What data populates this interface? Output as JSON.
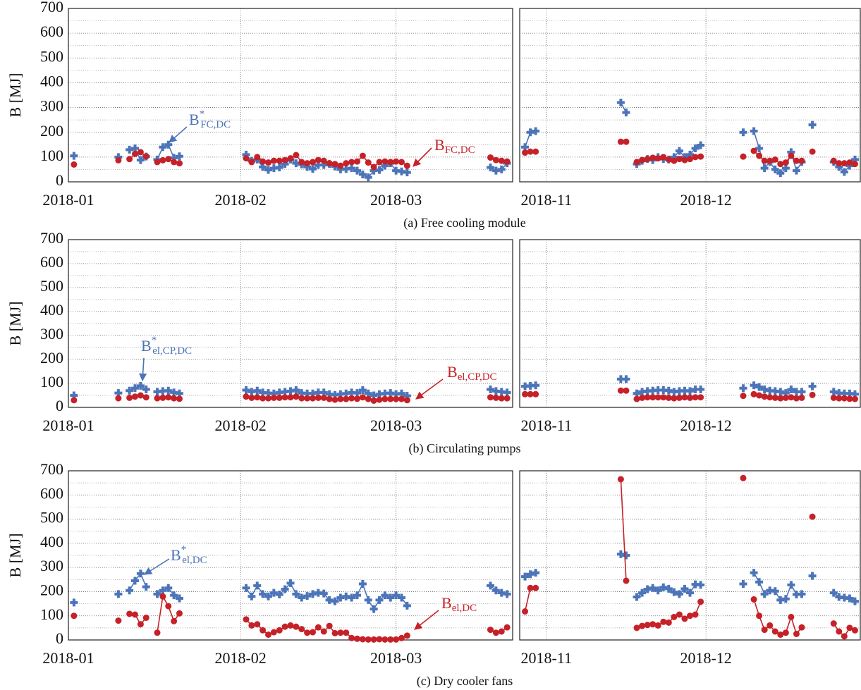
{
  "chart_data": [
    {
      "type": "line",
      "caption": "(a) Free cooling module",
      "ylabel": "B [MJ]",
      "ylim": [
        0,
        700
      ],
      "yticks": [
        0,
        100,
        200,
        300,
        400,
        500,
        600,
        700
      ],
      "yminor": [
        50,
        150,
        250,
        350,
        450,
        550,
        650
      ],
      "grid": true,
      "series": [
        {
          "name": "B",
          "sup": "*",
          "sub": "FC,DC",
          "color": "#4b74b9",
          "marker": "plus"
        },
        {
          "name": "B",
          "sub": "FC,DC",
          "color": "#c62128",
          "marker": "circle"
        }
      ],
      "panels": [
        {
          "xlim": [
            0,
            80
          ],
          "xticks": [
            {
              "value": 0,
              "label": "2018-01"
            },
            {
              "value": 31,
              "label": "2018-02"
            },
            {
              "value": 59,
              "label": "2018-03"
            }
          ],
          "x": [
            1,
            9,
            11,
            12,
            13,
            14,
            16,
            17,
            18,
            19,
            20,
            32,
            33,
            34,
            35,
            36,
            37,
            38,
            39,
            40,
            41,
            42,
            43,
            44,
            45,
            46,
            47,
            48,
            49,
            50,
            51,
            52,
            53,
            54,
            55,
            56,
            57,
            58,
            59,
            60,
            61,
            76,
            77,
            78,
            79
          ],
          "series": [
            {
              "values": [
                105,
                100,
                130,
                135,
                88,
                102,
                90,
                140,
                150,
                97,
                103,
                110,
                85,
                90,
                60,
                48,
                55,
                58,
                72,
                90,
                75,
                70,
                60,
                52,
                68,
                68,
                72,
                62,
                50,
                52,
                55,
                45,
                30,
                18,
                45,
                48,
                65,
                75,
                45,
                42,
                38,
                58,
                45,
                50,
                75
              ]
            },
            {
              "values": [
                70,
                87,
                92,
                113,
                120,
                103,
                80,
                87,
                92,
                80,
                75,
                95,
                80,
                100,
                82,
                78,
                85,
                85,
                88,
                95,
                108,
                80,
                75,
                80,
                88,
                85,
                75,
                72,
                65,
                75,
                80,
                82,
                105,
                78,
                60,
                80,
                82,
                80,
                82,
                80,
                65,
                98,
                88,
                85,
                82
              ]
            }
          ]
        },
        {
          "xlim": [
            299,
            363
          ],
          "xticks": [
            {
              "value": 304,
              "label": "2018-11"
            },
            {
              "value": 334,
              "label": "2018-12"
            }
          ],
          "x": [
            300,
            301,
            302,
            318,
            319,
            321,
            322,
            323,
            324,
            325,
            326,
            327,
            328,
            329,
            330,
            331,
            332,
            333,
            341,
            343,
            344,
            345,
            346,
            347,
            348,
            349,
            350,
            351,
            352,
            354,
            358,
            359,
            360,
            361,
            362
          ],
          "series": [
            {
              "values": [
                140,
                200,
                205,
                320,
                280,
                72,
                85,
                92,
                88,
                100,
                92,
                90,
                100,
                125,
                100,
                110,
                135,
                148,
                200,
                205,
                135,
                55,
                80,
                50,
                35,
                55,
                120,
                45,
                80,
                230,
                80,
                60,
                40,
                65,
                90
              ]
            },
            {
              "values": [
                118,
                122,
                122,
                162,
                162,
                80,
                88,
                92,
                97,
                95,
                100,
                90,
                85,
                92,
                88,
                92,
                100,
                102,
                102,
                125,
                105,
                85,
                85,
                90,
                72,
                78,
                105,
                85,
                85,
                122,
                85,
                75,
                75,
                78,
                72
              ]
            }
          ]
        }
      ]
    },
    {
      "type": "line",
      "caption": "(b) Circulating pumps",
      "ylabel": "B [MJ]",
      "ylim": [
        0,
        700
      ],
      "yticks": [
        0,
        100,
        200,
        300,
        400,
        500,
        600,
        700
      ],
      "yminor": [
        50,
        150,
        250,
        350,
        450,
        550,
        650
      ],
      "grid": true,
      "series": [
        {
          "name": "B",
          "sup": "*",
          "sub": "el,CP,DC",
          "color": "#4b74b9",
          "marker": "plus"
        },
        {
          "name": "B",
          "sub": "el,CP,DC",
          "color": "#c62128",
          "marker": "circle"
        }
      ],
      "panels": [
        {
          "xlim": [
            0,
            80
          ],
          "xticks": [
            {
              "value": 0,
              "label": "2018-01"
            },
            {
              "value": 31,
              "label": "2018-02"
            },
            {
              "value": 59,
              "label": "2018-03"
            }
          ],
          "x": [
            1,
            9,
            11,
            12,
            13,
            14,
            16,
            17,
            18,
            19,
            20,
            32,
            33,
            34,
            35,
            36,
            37,
            38,
            39,
            40,
            41,
            42,
            43,
            44,
            45,
            46,
            47,
            48,
            49,
            50,
            51,
            52,
            53,
            54,
            55,
            56,
            57,
            58,
            59,
            60,
            61,
            76,
            77,
            78,
            79
          ],
          "series": [
            {
              "values": [
                50,
                60,
                70,
                80,
                90,
                75,
                65,
                68,
                70,
                62,
                58,
                72,
                65,
                70,
                62,
                60,
                58,
                62,
                65,
                68,
                72,
                60,
                58,
                58,
                62,
                62,
                55,
                52,
                55,
                58,
                62,
                60,
                72,
                58,
                50,
                55,
                58,
                60,
                55,
                58,
                48,
                75,
                68,
                65,
                62
              ]
            },
            {
              "values": [
                30,
                38,
                40,
                45,
                50,
                42,
                38,
                40,
                42,
                38,
                36,
                45,
                40,
                42,
                38,
                38,
                40,
                40,
                42,
                42,
                45,
                38,
                38,
                38,
                40,
                40,
                35,
                32,
                35,
                35,
                38,
                36,
                42,
                35,
                28,
                32,
                35,
                35,
                35,
                35,
                30,
                42,
                40,
                38,
                38
              ]
            }
          ]
        },
        {
          "xlim": [
            299,
            363
          ],
          "xticks": [
            {
              "value": 304,
              "label": "2018-11"
            },
            {
              "value": 334,
              "label": "2018-12"
            }
          ],
          "x": [
            300,
            301,
            302,
            318,
            319,
            321,
            322,
            323,
            324,
            325,
            326,
            327,
            328,
            329,
            330,
            331,
            332,
            333,
            341,
            343,
            344,
            345,
            346,
            347,
            348,
            349,
            350,
            351,
            352,
            354,
            358,
            359,
            360,
            361,
            362
          ],
          "series": [
            {
              "values": [
                88,
                90,
                92,
                118,
                118,
                58,
                65,
                68,
                70,
                72,
                72,
                70,
                65,
                68,
                70,
                68,
                75,
                75,
                80,
                92,
                85,
                75,
                70,
                68,
                65,
                60,
                75,
                65,
                65,
                88,
                65,
                60,
                58,
                58,
                55
              ]
            },
            {
              "values": [
                55,
                55,
                55,
                70,
                70,
                35,
                40,
                42,
                42,
                42,
                42,
                40,
                38,
                40,
                42,
                40,
                42,
                42,
                48,
                55,
                50,
                45,
                42,
                40,
                38,
                40,
                42,
                38,
                40,
                52,
                40,
                38,
                38,
                36,
                35
              ]
            }
          ]
        }
      ]
    },
    {
      "type": "line",
      "caption": "(c) Dry cooler fans",
      "ylabel": "B [MJ]",
      "ylim": [
        0,
        700
      ],
      "yticks": [
        0,
        100,
        200,
        300,
        400,
        500,
        600,
        700
      ],
      "yminor": [
        50,
        150,
        250,
        350,
        450,
        550,
        650
      ],
      "grid": true,
      "series": [
        {
          "name": "B",
          "sup": "*",
          "sub": "el,DC",
          "color": "#4b74b9",
          "marker": "plus"
        },
        {
          "name": "B",
          "sub": "el,DC",
          "color": "#c62128",
          "marker": "circle"
        }
      ],
      "panels": [
        {
          "xlim": [
            0,
            80
          ],
          "xticks": [
            {
              "value": 0,
              "label": "2018-01"
            },
            {
              "value": 31,
              "label": "2018-02"
            },
            {
              "value": 59,
              "label": "2018-03"
            }
          ],
          "x": [
            1,
            9,
            11,
            12,
            13,
            14,
            16,
            17,
            18,
            19,
            20,
            32,
            33,
            34,
            35,
            36,
            37,
            38,
            39,
            40,
            41,
            42,
            43,
            44,
            45,
            46,
            47,
            48,
            49,
            50,
            51,
            52,
            53,
            54,
            55,
            56,
            57,
            58,
            59,
            60,
            61,
            76,
            77,
            78,
            79
          ],
          "series": [
            {
              "values": [
                155,
                190,
                205,
                245,
                275,
                220,
                190,
                205,
                215,
                185,
                172,
                215,
                180,
                225,
                190,
                180,
                195,
                188,
                210,
                235,
                190,
                175,
                182,
                190,
                195,
                192,
                165,
                160,
                175,
                180,
                175,
                185,
                232,
                165,
                128,
                165,
                185,
                175,
                185,
                175,
                142,
                225,
                205,
                195,
                190
              ]
            },
            {
              "values": [
                100,
                80,
                108,
                105,
                65,
                92,
                30,
                180,
                140,
                78,
                110,
                85,
                60,
                65,
                40,
                22,
                32,
                40,
                55,
                60,
                55,
                45,
                30,
                32,
                52,
                35,
                58,
                28,
                30,
                30,
                8,
                5,
                3,
                2,
                2,
                3,
                2,
                2,
                2,
                8,
                18,
                42,
                30,
                35,
                52
              ]
            }
          ]
        },
        {
          "xlim": [
            299,
            363
          ],
          "xticks": [
            {
              "value": 304,
              "label": "2018-11"
            },
            {
              "value": 334,
              "label": "2018-12"
            }
          ],
          "x": [
            300,
            301,
            302,
            318,
            319,
            321,
            322,
            323,
            324,
            325,
            326,
            327,
            328,
            329,
            330,
            331,
            332,
            333,
            341,
            343,
            344,
            345,
            346,
            347,
            348,
            349,
            350,
            351,
            352,
            354,
            358,
            359,
            360,
            361,
            362
          ],
          "series": [
            {
              "values": [
                262,
                272,
                278,
                355,
                350,
                178,
                195,
                210,
                215,
                205,
                218,
                212,
                198,
                190,
                212,
                195,
                230,
                228,
                232,
                278,
                240,
                190,
                205,
                202,
                165,
                170,
                228,
                188,
                190,
                265,
                195,
                178,
                175,
                172,
                160
              ]
            },
            {
              "values": [
                118,
                215,
                215,
                665,
                245,
                50,
                58,
                62,
                65,
                60,
                75,
                72,
                95,
                105,
                88,
                100,
                105,
                158,
                670,
                168,
                100,
                42,
                60,
                35,
                22,
                30,
                95,
                25,
                52,
                510,
                68,
                35,
                15,
                50,
                40
              ]
            }
          ]
        }
      ]
    }
  ]
}
